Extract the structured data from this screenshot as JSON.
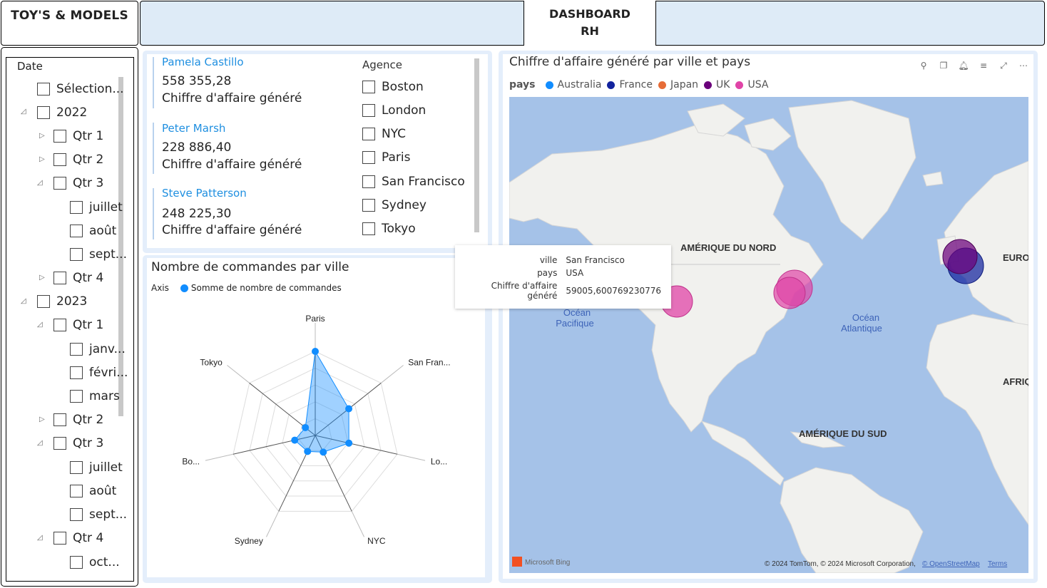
{
  "header": {
    "brand": "TOY'S & MODELS",
    "title_line1": "DASHBOARD",
    "title_line2": "RH"
  },
  "date_slicer": {
    "title": "Date",
    "items": [
      {
        "label": "Sélection..."
      },
      {
        "label": "2022"
      },
      {
        "label": "Qtr 1"
      },
      {
        "label": "Qtr 2"
      },
      {
        "label": "Qtr 3"
      },
      {
        "label": "juillet"
      },
      {
        "label": "août"
      },
      {
        "label": "sept..."
      },
      {
        "label": "Qtr 4"
      },
      {
        "label": "2023"
      },
      {
        "label": "Qtr 1"
      },
      {
        "label": "janv..."
      },
      {
        "label": "févri..."
      },
      {
        "label": "mars"
      },
      {
        "label": "Qtr 2"
      },
      {
        "label": "Qtr 3"
      },
      {
        "label": "juillet"
      },
      {
        "label": "août"
      },
      {
        "label": "sept..."
      },
      {
        "label": "Qtr 4"
      },
      {
        "label": "oct..."
      }
    ]
  },
  "employees": [
    {
      "name": "Pamela Castillo",
      "value": "558 355,28",
      "label": "Chiffre d'affaire généré"
    },
    {
      "name": "Peter Marsh",
      "value": "228 886,40",
      "label": "Chiffre d'affaire généré"
    },
    {
      "name": "Steve Patterson",
      "value": "248 225,30",
      "label": "Chiffre d'affaire généré"
    }
  ],
  "agence": {
    "title": "Agence",
    "items": [
      "Boston",
      "London",
      "NYC",
      "Paris",
      "San Francisco",
      "Sydney",
      "Tokyo"
    ]
  },
  "chart_data": {
    "type": "radar",
    "title": "Nombre de commandes par ville",
    "legend_title": "Axis",
    "categories": [
      "Paris",
      "San Fran...",
      "Lo...",
      "NYC",
      "Sydney",
      "Bo...",
      "Tokyo"
    ],
    "series": [
      {
        "name": "Somme de nombre de commandes",
        "values": [
          100,
          51,
          41,
          22,
          21,
          25,
          15
        ],
        "color": "#118dff"
      }
    ],
    "rmax": 100,
    "rings": 5
  },
  "map": {
    "title": "Chiffre d'affaire généré par ville et pays",
    "legend_title": "pays",
    "legend": [
      {
        "name": "Australia",
        "color": "#118dff"
      },
      {
        "name": "France",
        "color": "#12239e"
      },
      {
        "name": "Japan",
        "color": "#e66c37"
      },
      {
        "name": "UK",
        "color": "#6b007b"
      },
      {
        "name": "USA",
        "color": "#e044a7"
      }
    ],
    "labels": {
      "north_america": "AMÉRIQUE DU NORD",
      "south_america": "AMÉRIQUE DU SUD",
      "europe": "EURO",
      "africa": "AFRIQ",
      "pacific1": "Océan",
      "pacific2": "Pacifique",
      "atlantic1": "Océan",
      "atlantic2": "Atlantique"
    },
    "attribution": "© 2024 TomTom, © 2024 Microsoft Corporation,",
    "osm": "© OpenStreetMap",
    "terms": "Terms",
    "bing": "Microsoft Bing",
    "tooltip": [
      {
        "key": "ville",
        "value": "San Francisco"
      },
      {
        "key": "pays",
        "value": "USA"
      },
      {
        "key": "Chiffre d'affaire généré",
        "value": "59005,600769230776"
      }
    ]
  }
}
